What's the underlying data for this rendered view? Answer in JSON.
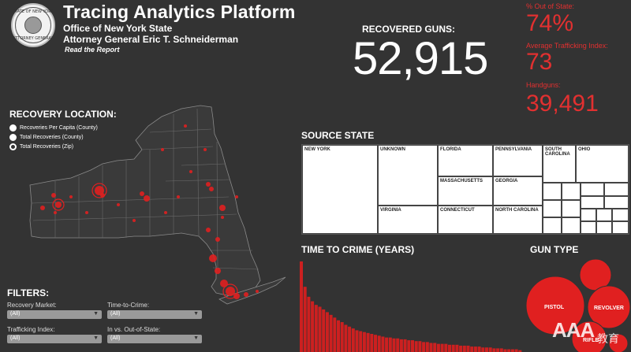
{
  "header": {
    "title": "Tracing Analytics Platform",
    "subtitle1": "Office of New York State",
    "subtitle2": "Attorney General Eric T. Schneiderman",
    "read_report_link": "Read the Report",
    "seal_top_text": "STATE OF NEW YORK",
    "seal_bottom_text": "ATTORNEY GENERAL"
  },
  "kpi": {
    "label": "RECOVERED GUNS:",
    "value": "52,915"
  },
  "stats": [
    {
      "label": "% Out of State:",
      "value": "74%"
    },
    {
      "label": "Average Trafficking Index:",
      "value": "73"
    },
    {
      "label": "Handguns:",
      "value": "39,491"
    }
  ],
  "colors": {
    "accent": "#e23030",
    "background": "#333333",
    "bar": "#cc2020",
    "bubble": "#e02020"
  },
  "recovery_location": {
    "title": "RECOVERY LOCATION:",
    "options": [
      {
        "label": "Recoveries Per Capita (County)",
        "selected": false
      },
      {
        "label": "Total Recoveries (County)",
        "selected": false
      },
      {
        "label": "Total Recoveries (Zip)",
        "selected": true
      }
    ]
  },
  "filters": {
    "title": "FILTERS:",
    "items": [
      {
        "label": "Recovery Market:",
        "value": "(All)"
      },
      {
        "label": "Time-to-Crime:",
        "value": "(All)"
      },
      {
        "label": "Trafficking Index:",
        "value": "(All)"
      },
      {
        "label": "In vs. Out-of-State:",
        "value": "(All)"
      }
    ]
  },
  "source_state": {
    "title": "SOURCE STATE",
    "cells": [
      "NEW YORK",
      "UNKNOWN",
      "FLORIDA",
      "PENNSYLVANIA",
      "SOUTH CAROLINA",
      "OHIO",
      "MASSACHUSETTS",
      "GEORGIA",
      "VIRGINIA",
      "CONNECTICUT",
      "NORTH CAROLINA"
    ]
  },
  "time_to_crime": {
    "title": "TIME TO CRIME (YEARS)"
  },
  "gun_type": {
    "title": "GUN TYPE",
    "labels": [
      "PISTOL",
      "REVOLVER",
      "RIFLE"
    ]
  },
  "watermark": {
    "text": "AAA",
    "suffix": "教育"
  },
  "chart_data": [
    {
      "type": "bar",
      "title": "TIME TO CRIME (YEARS)",
      "series": [
        {
          "values": [
            100,
            72,
            61,
            56,
            52,
            50,
            47,
            44,
            41,
            38,
            35,
            33,
            30,
            28,
            26,
            24,
            23,
            22,
            21,
            20,
            19,
            18,
            17,
            16,
            16,
            15,
            15,
            14,
            14,
            13,
            13,
            12,
            12,
            11,
            11,
            10,
            10,
            9,
            9,
            9,
            8,
            8,
            8,
            7,
            7,
            7,
            6,
            6,
            6,
            5,
            5,
            5,
            4,
            4,
            4,
            3,
            3,
            3,
            3,
            2
          ]
        }
      ],
      "grid": false
    },
    {
      "type": "scatter",
      "title": "GUN TYPE",
      "series": [
        {
          "name": "gun types",
          "values": [
            {
              "label": "PISTOL",
              "size": 1.0
            },
            {
              "label": "REVOLVER",
              "size": 0.55
            },
            {
              "label": "RIFLE",
              "size": 0.35
            }
          ]
        }
      ]
    }
  ]
}
